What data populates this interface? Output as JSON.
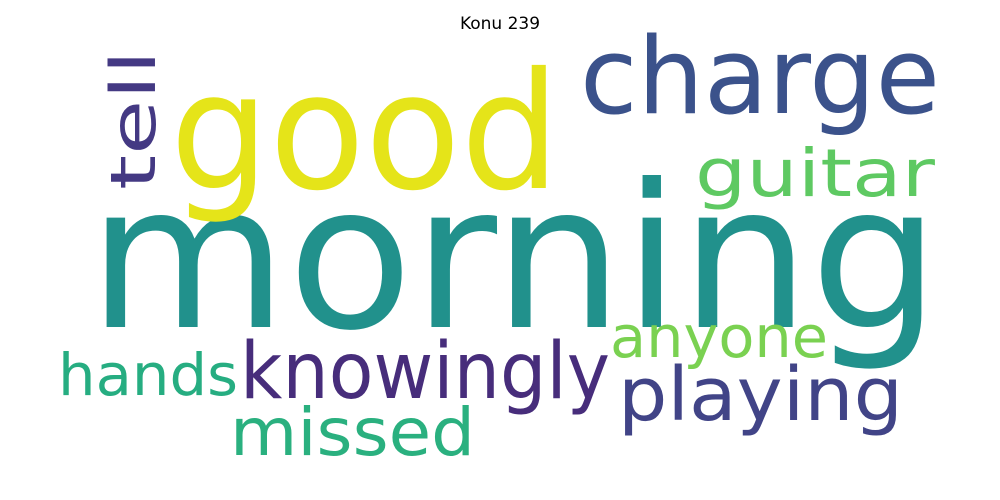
{
  "title": "Konu 239",
  "words": [
    {
      "text": "morning",
      "color": "#21918c"
    },
    {
      "text": "good",
      "color": "#e5e419"
    },
    {
      "text": "charge",
      "color": "#3b528b"
    },
    {
      "text": "guitar",
      "color": "#5ec962"
    },
    {
      "text": "tell",
      "color": "#443983"
    },
    {
      "text": "anyone",
      "color": "#7ad151"
    },
    {
      "text": "hands",
      "color": "#26ad81"
    },
    {
      "text": "knowingly",
      "color": "#472d7b"
    },
    {
      "text": "playing",
      "color": "#414487"
    },
    {
      "text": "missed",
      "color": "#2ab07f"
    }
  ]
}
